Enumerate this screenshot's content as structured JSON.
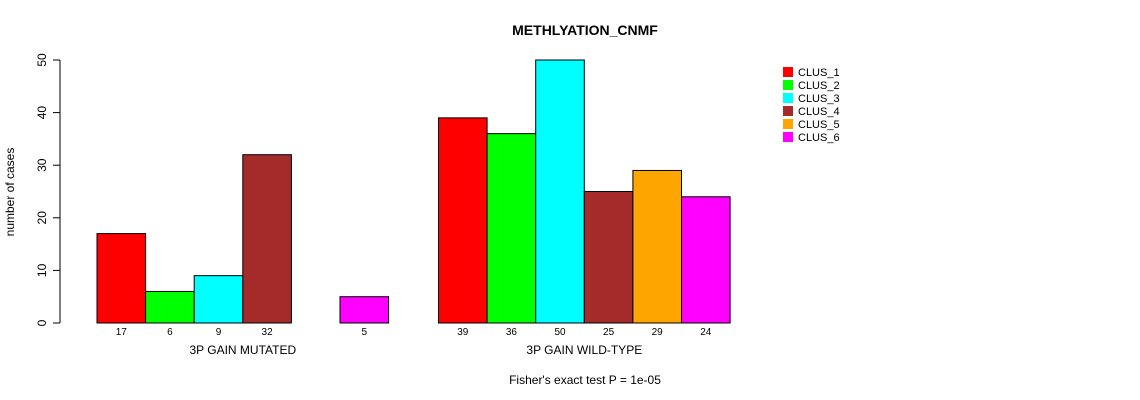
{
  "chart_data": {
    "type": "bar",
    "title": "METHLYATION_CNMF",
    "ylabel": "number of cases",
    "ylim": [
      0,
      50
    ],
    "yticks": [
      0,
      10,
      20,
      30,
      40,
      50
    ],
    "grid": false,
    "legend_position": "top-right",
    "series": [
      {
        "name": "CLUS_1",
        "color": "#FF0000"
      },
      {
        "name": "CLUS_2",
        "color": "#00FF00"
      },
      {
        "name": "CLUS_3",
        "color": "#00FFFF"
      },
      {
        "name": "CLUS_4",
        "color": "#A52A2A"
      },
      {
        "name": "CLUS_5",
        "color": "#FFA500"
      },
      {
        "name": "CLUS_6",
        "color": "#FF00FF"
      }
    ],
    "groups": [
      {
        "label": "3P GAIN MUTATED",
        "values": [
          17,
          6,
          9,
          32,
          0,
          5
        ],
        "value_labels": [
          "17",
          "6",
          "9",
          "32",
          "",
          "5"
        ]
      },
      {
        "label": "3P GAIN WILD-TYPE",
        "values": [
          39,
          36,
          50,
          25,
          29,
          24
        ],
        "value_labels": [
          "39",
          "36",
          "50",
          "25",
          "29",
          "24"
        ]
      }
    ],
    "footnote": "Fisher's exact test P = 1e-05"
  }
}
